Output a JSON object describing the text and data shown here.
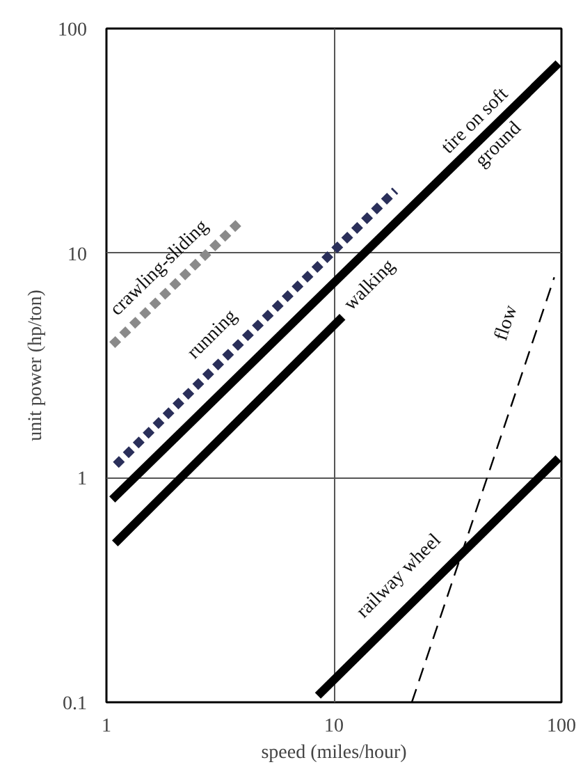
{
  "chart_data": {
    "type": "line",
    "xlabel": "speed (miles/hour)",
    "ylabel": "unit power (hp/ton)",
    "log": "xy",
    "xlim": [
      1,
      100
    ],
    "ylim": [
      0.1,
      100
    ],
    "xticks": [
      1,
      10,
      100
    ],
    "yticks": [
      0.1,
      1,
      10,
      100
    ],
    "grid": true,
    "legend": false,
    "series": [
      {
        "name": "crawling-sliding",
        "color": "#8a8a8a",
        "line_style": "dashed",
        "x": [
          1.06,
          3.8
        ],
        "values": [
          3.9,
          13.6
        ]
      },
      {
        "name": "running",
        "color": "#2a2f5a",
        "line_style": "dashed",
        "x": [
          1.1,
          18.6
        ],
        "values": [
          1.14,
          19
        ]
      },
      {
        "name": "tire on soft ground",
        "color": "#000000",
        "line_style": "solid",
        "x": [
          1.06,
          97
        ],
        "values": [
          0.8,
          70
        ]
      },
      {
        "name": "walking",
        "color": "#000000",
        "line_style": "solid",
        "x": [
          1.09,
          10.9
        ],
        "values": [
          0.51,
          5.2
        ]
      },
      {
        "name": "railway wheel",
        "color": "#000000",
        "line_style": "solid",
        "x": [
          8.5,
          97
        ],
        "values": [
          0.107,
          1.22
        ]
      },
      {
        "name": "flow",
        "color": "#000000",
        "line_style": "dashed",
        "x": [
          22,
          93
        ],
        "values": [
          0.1,
          7.8
        ]
      }
    ]
  }
}
